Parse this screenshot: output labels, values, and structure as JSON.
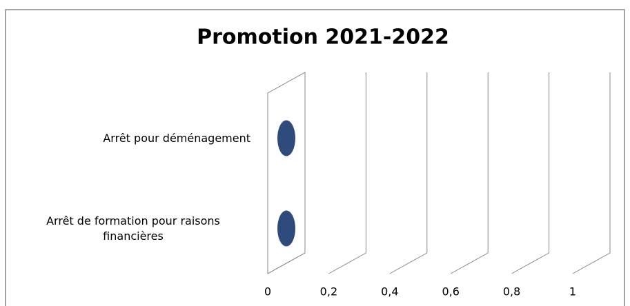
{
  "chart_data": {
    "type": "bar3d",
    "orientation": "horizontal",
    "title": "Promotion 2021-2022",
    "categories": [
      "Arrêt pour déménagement",
      "Arrêt de formation pour raisons financières"
    ],
    "values": [
      0,
      0
    ],
    "color": "#2f4b7c",
    "xlim": [
      0,
      1
    ],
    "xticks": [
      0,
      {
        "value": 0.2,
        "label": "0,2"
      },
      {
        "value": 0.4,
        "label": "0,4"
      },
      {
        "value": 0.6,
        "label": "0,6"
      },
      {
        "value": 0.8,
        "label": "0,8"
      },
      1
    ],
    "grid": true
  }
}
